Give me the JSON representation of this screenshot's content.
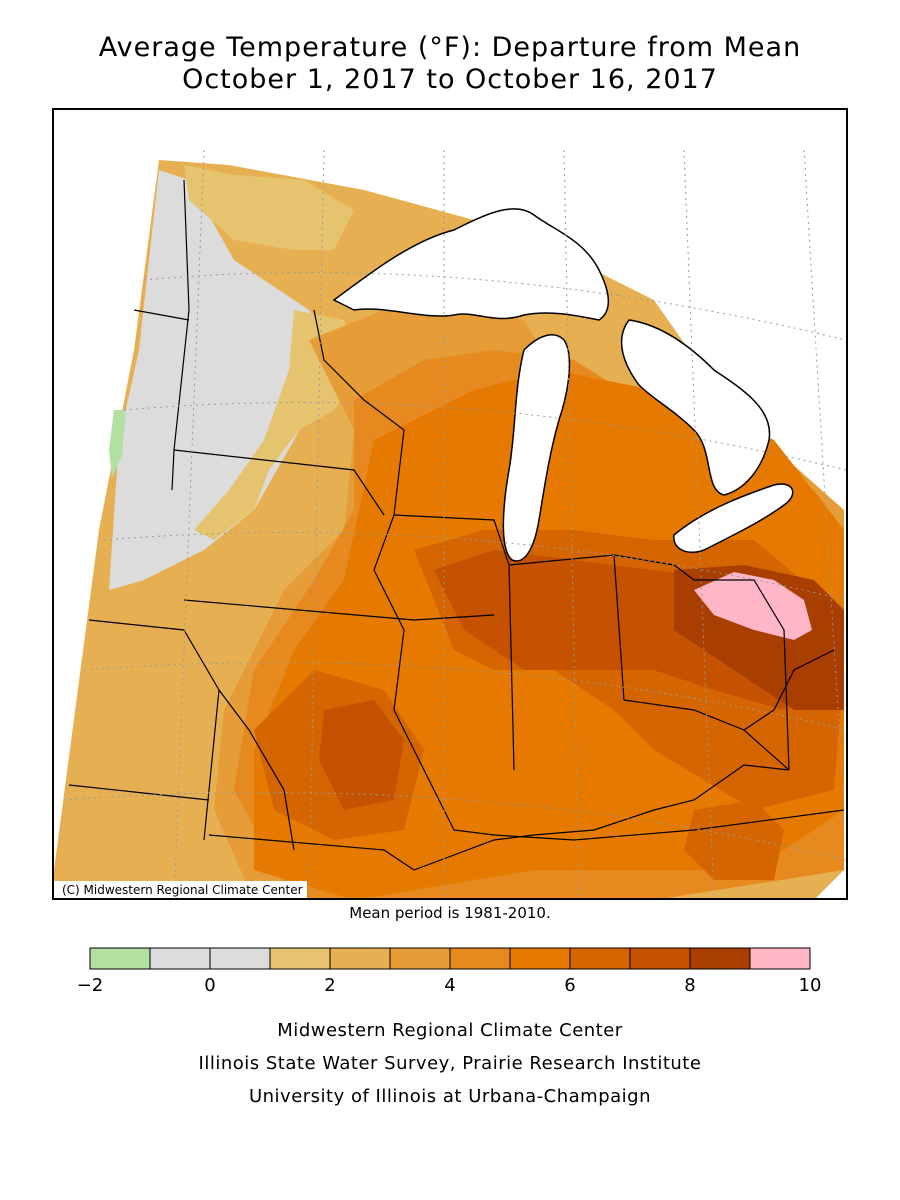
{
  "header": {
    "title_line1": "Average Temperature (°F): Departure from Mean",
    "title_line2": "October 1, 2017 to October 16, 2017"
  },
  "map": {
    "copyright": "(C) Midwestern Regional Climate Center",
    "mean_period": "Mean period is 1981-2010."
  },
  "legend": {
    "colors": [
      "#b2e0a0",
      "#dcdcdc",
      "#dcdcdc",
      "#e6c36e",
      "#e6b052",
      "#e69d38",
      "#e68a20",
      "#e67a00",
      "#d56500",
      "#c45200",
      "#a83e00",
      "#ffb6c6"
    ],
    "tick_labels": [
      "−2",
      "0",
      "2",
      "4",
      "6",
      "8",
      "10"
    ]
  },
  "footer": {
    "line1": "Midwestern Regional Climate Center",
    "line2": "Illinois State Water Survey, Prairie Research Institute",
    "line3": "University of Illinois at Urbana-Champaign"
  }
}
